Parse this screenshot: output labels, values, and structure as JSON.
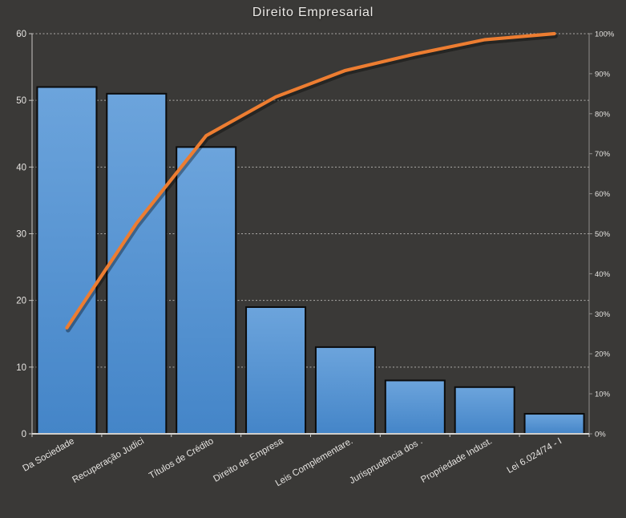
{
  "title": "Direito Empresarial",
  "chart_data": {
    "type": "bar",
    "subtype": "pareto",
    "title": "Direito Empresarial",
    "categories": [
      "Da Sociedade",
      "Recuperação Judici",
      "Títulos de Crédito",
      "Direito de Empresa",
      "Leis Complementare.",
      "Jurisprudência dos .",
      "Propriedade Indust.",
      "Lei 6.024/74 - I"
    ],
    "series": [
      {
        "type": "bar",
        "axis": "left",
        "values": [
          52,
          51,
          43,
          19,
          13,
          8,
          7,
          3
        ]
      },
      {
        "type": "line",
        "axis": "right",
        "values_pct": [
          26.5,
          52.6,
          74.5,
          84.2,
          90.8,
          94.9,
          98.5,
          100
        ]
      }
    ],
    "left_axis": {
      "range": [
        0,
        60
      ],
      "step": 10,
      "tick_labels": [
        "0",
        "10",
        "20",
        "30",
        "40",
        "50",
        "60"
      ]
    },
    "right_axis": {
      "range": [
        0,
        100
      ],
      "step": 10,
      "tick_labels": [
        "0%",
        "10%",
        "20%",
        "30%",
        "40%",
        "50%",
        "60%",
        "70%",
        "80%",
        "90%",
        "100%"
      ]
    },
    "gridlines": {
      "orientation": "horizontal",
      "style": "dashed",
      "at_left_axis_values": [
        10,
        20,
        30,
        40,
        50,
        60
      ]
    },
    "legend": "none",
    "colors": {
      "background": "#3a3937",
      "bar_gradient_top": "#6ca4dc",
      "bar_gradient_bottom": "#4485c8",
      "bar_border": "#0b0b0b",
      "line": "#ed7d31",
      "gridline": "#cbc9c6",
      "axis_text": "#e6e4e1",
      "axis_line_left": "#c9c7c4",
      "axis_line_bottom": "#eceae7",
      "axis_line_right": "#8e8c89"
    }
  }
}
